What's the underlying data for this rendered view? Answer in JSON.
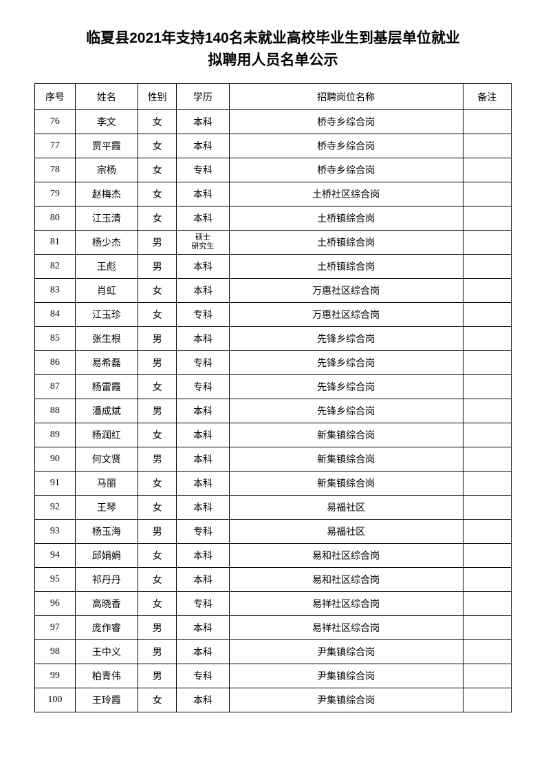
{
  "title_line1": "临夏县2021年支持140名未就业高校毕业生到基层单位就业",
  "title_line2": "拟聘用人员名单公示",
  "headers": {
    "seq": "序号",
    "name": "姓名",
    "gender": "性别",
    "education": "学历",
    "position": "招聘岗位名称",
    "remark": "备注"
  },
  "rows": [
    {
      "seq": "76",
      "name": "李文",
      "gender": "女",
      "education": "本科",
      "position": "桥寺乡综合岗",
      "remark": ""
    },
    {
      "seq": "77",
      "name": "贾平霞",
      "gender": "女",
      "education": "本科",
      "position": "桥寺乡综合岗",
      "remark": ""
    },
    {
      "seq": "78",
      "name": "宗杨",
      "gender": "女",
      "education": "专科",
      "position": "桥寺乡综合岗",
      "remark": ""
    },
    {
      "seq": "79",
      "name": "赵梅杰",
      "gender": "女",
      "education": "本科",
      "position": "土桥社区综合岗",
      "remark": ""
    },
    {
      "seq": "80",
      "name": "江玉清",
      "gender": "女",
      "education": "本科",
      "position": "土桥镇综合岗",
      "remark": ""
    },
    {
      "seq": "81",
      "name": "杨少杰",
      "gender": "男",
      "education": "硕士\n研究生",
      "position": "土桥镇综合岗",
      "remark": "",
      "edu_small": true
    },
    {
      "seq": "82",
      "name": "王彪",
      "gender": "男",
      "education": "本科",
      "position": "土桥镇综合岗",
      "remark": ""
    },
    {
      "seq": "83",
      "name": "肖虹",
      "gender": "女",
      "education": "本科",
      "position": "万惠社区综合岗",
      "remark": ""
    },
    {
      "seq": "84",
      "name": "江玉珍",
      "gender": "女",
      "education": "专科",
      "position": "万惠社区综合岗",
      "remark": ""
    },
    {
      "seq": "85",
      "name": "张生根",
      "gender": "男",
      "education": "本科",
      "position": "先锋乡综合岗",
      "remark": ""
    },
    {
      "seq": "86",
      "name": "易希磊",
      "gender": "男",
      "education": "专科",
      "position": "先锋乡综合岗",
      "remark": ""
    },
    {
      "seq": "87",
      "name": "杨雷霞",
      "gender": "女",
      "education": "专科",
      "position": "先锋乡综合岗",
      "remark": ""
    },
    {
      "seq": "88",
      "name": "潘成斌",
      "gender": "男",
      "education": "本科",
      "position": "先锋乡综合岗",
      "remark": ""
    },
    {
      "seq": "89",
      "name": "杨润红",
      "gender": "女",
      "education": "本科",
      "position": "新集镇综合岗",
      "remark": ""
    },
    {
      "seq": "90",
      "name": "何文贤",
      "gender": "男",
      "education": "本科",
      "position": "新集镇综合岗",
      "remark": ""
    },
    {
      "seq": "91",
      "name": "马丽",
      "gender": "女",
      "education": "本科",
      "position": "新集镇综合岗",
      "remark": ""
    },
    {
      "seq": "92",
      "name": "王琴",
      "gender": "女",
      "education": "本科",
      "position": "易福社区",
      "remark": ""
    },
    {
      "seq": "93",
      "name": "杨玉海",
      "gender": "男",
      "education": "专科",
      "position": "易福社区",
      "remark": ""
    },
    {
      "seq": "94",
      "name": "邱娟娟",
      "gender": "女",
      "education": "本科",
      "position": "易和社区综合岗",
      "remark": ""
    },
    {
      "seq": "95",
      "name": "祁丹丹",
      "gender": "女",
      "education": "本科",
      "position": "易和社区综合岗",
      "remark": ""
    },
    {
      "seq": "96",
      "name": "高晓香",
      "gender": "女",
      "education": "专科",
      "position": "易祥社区综合岗",
      "remark": ""
    },
    {
      "seq": "97",
      "name": "庞作睿",
      "gender": "男",
      "education": "本科",
      "position": "易祥社区综合岗",
      "remark": ""
    },
    {
      "seq": "98",
      "name": "王中义",
      "gender": "男",
      "education": "本科",
      "position": "尹集镇综合岗",
      "remark": ""
    },
    {
      "seq": "99",
      "name": "柏青伟",
      "gender": "男",
      "education": "专科",
      "position": "尹集镇综合岗",
      "remark": ""
    },
    {
      "seq": "100",
      "name": "王玲霞",
      "gender": "女",
      "education": "本科",
      "position": "尹集镇综合岗",
      "remark": ""
    }
  ]
}
